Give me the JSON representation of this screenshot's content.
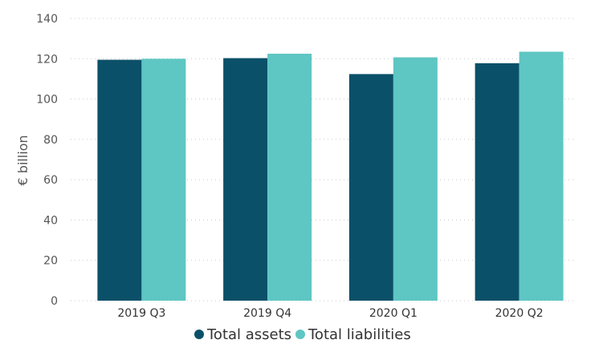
{
  "chart_data": {
    "type": "bar",
    "title": "",
    "xlabel": "",
    "ylabel": "€ billion",
    "ylim": [
      0,
      140
    ],
    "yticks": [
      0,
      20,
      40,
      60,
      80,
      100,
      120,
      140
    ],
    "categories": [
      "2019 Q3",
      "2019 Q4",
      "2020 Q1",
      "2020 Q2"
    ],
    "series": [
      {
        "name": "Total assets",
        "color": "#0b5069",
        "values": [
          119.5,
          120.3,
          112.4,
          117.8
        ]
      },
      {
        "name": "Total liabilities",
        "color": "#5ec6c3",
        "values": [
          120.0,
          122.5,
          120.7,
          123.5
        ]
      }
    ],
    "grid": "horizontal-dotted",
    "legend_position": "bottom-center"
  }
}
